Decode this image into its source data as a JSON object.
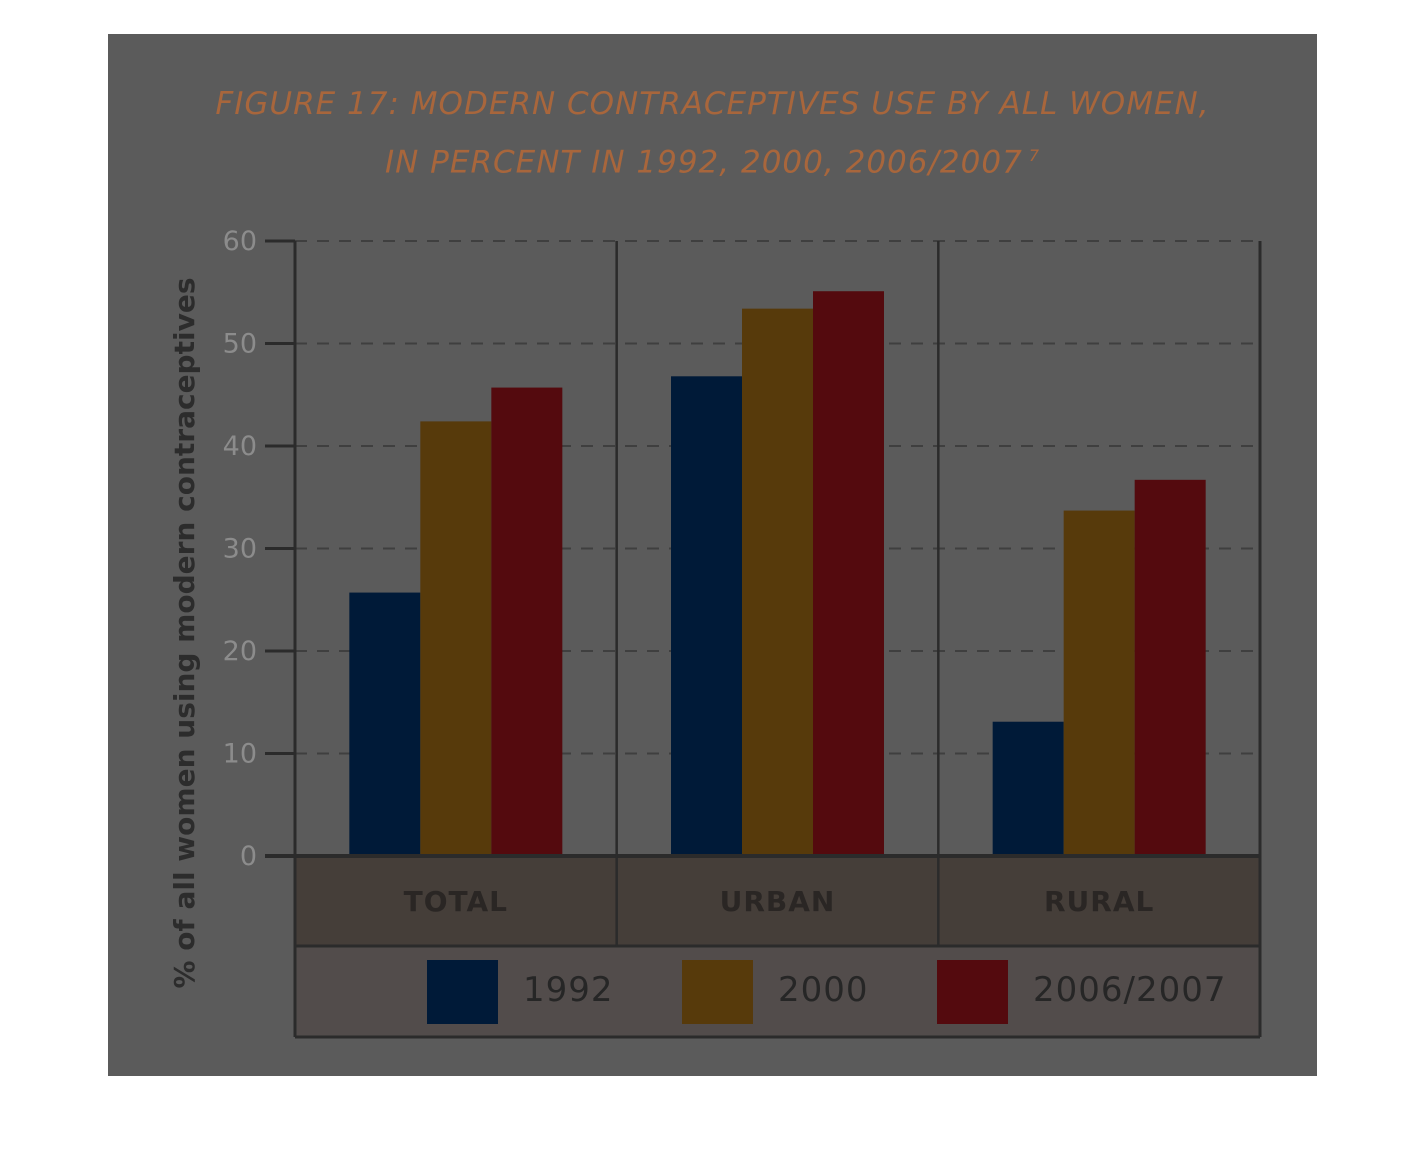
{
  "chart_data": {
    "type": "bar",
    "title_line1": "FIGURE 17: MODERN CONTRACEPTIVES USE BY ALL WOMEN,",
    "title_line2": "IN PERCENT IN 1992, 2000, 2006/2007",
    "title_footnote": "7",
    "ylabel": "% of all women using modern contraceptives",
    "xlabel": "",
    "ylim": [
      0,
      60
    ],
    "yticks": [
      0,
      10,
      20,
      30,
      40,
      50,
      60
    ],
    "categories": [
      "TOTAL",
      "URBAN",
      "RURAL"
    ],
    "series": [
      {
        "name": "1992",
        "color": "#001a38",
        "values": [
          25.7,
          46.8,
          13.1
        ]
      },
      {
        "name": "2000",
        "color": "#573a0b",
        "values": [
          42.4,
          53.4,
          33.7
        ]
      },
      {
        "name": "2006/2007",
        "color": "#540a0e",
        "values": [
          45.7,
          55.1,
          36.7
        ]
      }
    ],
    "grid": "dashed horizontal",
    "legend_position": "bottom"
  }
}
